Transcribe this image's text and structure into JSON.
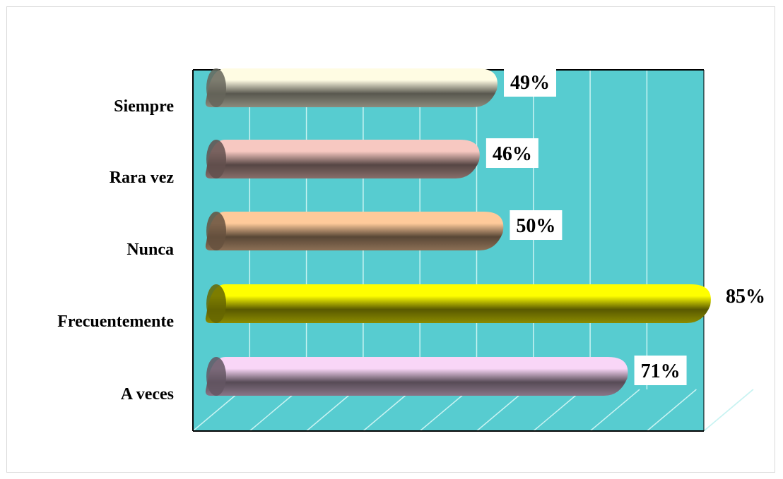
{
  "chart_data": {
    "type": "bar",
    "orientation": "horizontal",
    "style": "3d-cylinder",
    "categories": [
      "Siempre",
      "Rara vez",
      "Nunca",
      "Frecuentemente",
      "A veces"
    ],
    "values": [
      49,
      46,
      50,
      85,
      71
    ],
    "value_labels": [
      "49%",
      "46%",
      "50%",
      "85%",
      "71%"
    ],
    "xlim": [
      0,
      85
    ],
    "grid": true,
    "legend": "none",
    "colors": {
      "plot_background": "#57CCD0",
      "gridline": "#C9F3F2",
      "bars": [
        "#FFFCE3",
        "#F7C8C1",
        "#FFCA9A",
        "#FFFF00",
        "#F9D6F7"
      ]
    }
  }
}
